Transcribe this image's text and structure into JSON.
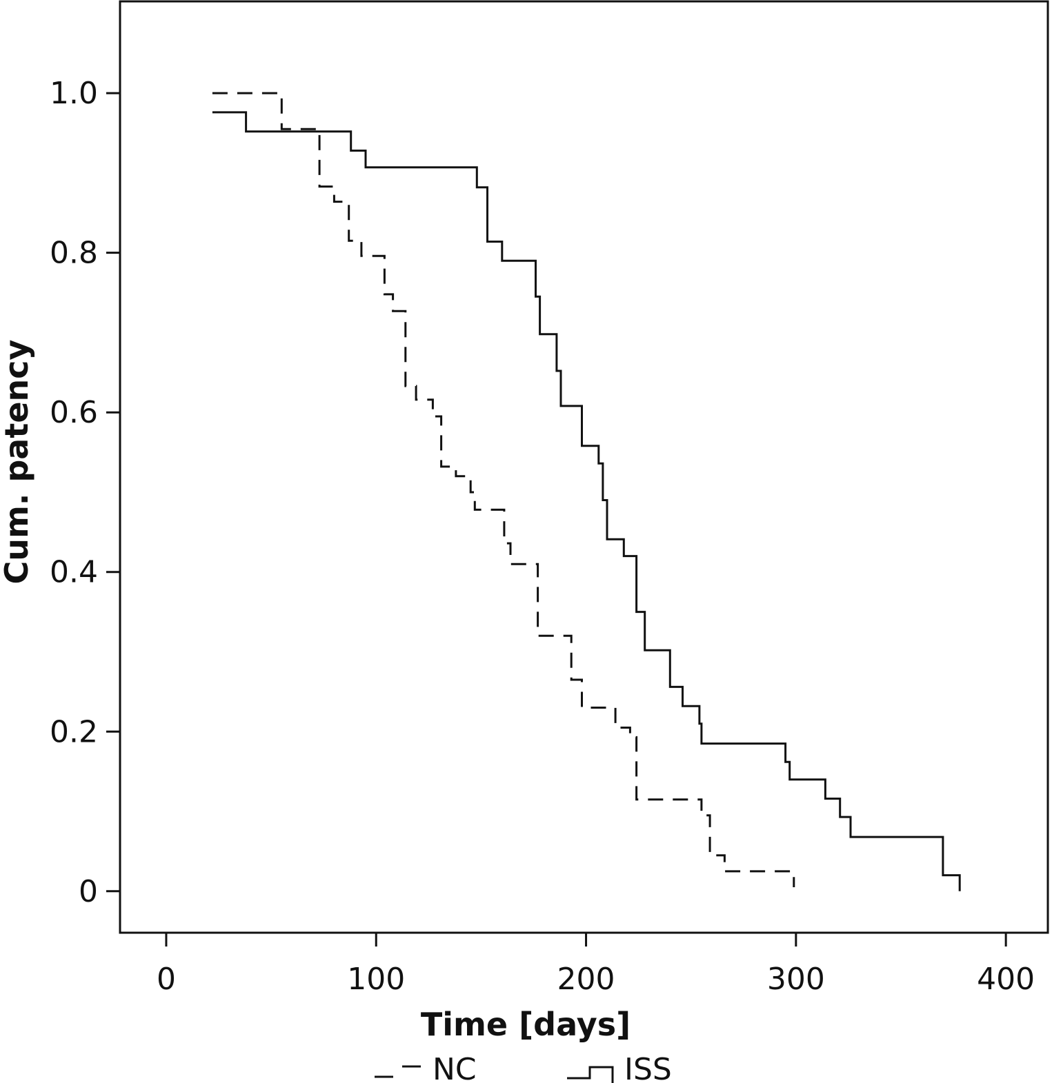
{
  "chart_data": {
    "type": "line",
    "step": true,
    "xlabel": "Time [days]",
    "ylabel": "Cum. patency",
    "xlim": [
      -22,
      420
    ],
    "ylim": [
      -0.052,
      1.115
    ],
    "x_ticks": [
      0,
      100,
      200,
      300,
      400
    ],
    "x_tick_labels": [
      "0",
      "100",
      "200",
      "300",
      "400"
    ],
    "y_ticks": [
      0,
      0.2,
      0.4,
      0.6,
      0.8,
      1.0
    ],
    "y_tick_labels": [
      "0",
      "0.2",
      "0.4",
      "0.6",
      "0.8",
      "1.0"
    ],
    "grid": false,
    "legend_position": "bottom",
    "series": [
      {
        "name": "NC",
        "style": "dashed",
        "color": "#111111",
        "points": [
          [
            22,
            1.0
          ],
          [
            55,
            1.0
          ],
          [
            55,
            0.955
          ],
          [
            73,
            0.955
          ],
          [
            73,
            0.883
          ],
          [
            80,
            0.883
          ],
          [
            80,
            0.864
          ],
          [
            87,
            0.864
          ],
          [
            87,
            0.815
          ],
          [
            93,
            0.815
          ],
          [
            93,
            0.796
          ],
          [
            104,
            0.796
          ],
          [
            104,
            0.748
          ],
          [
            108,
            0.748
          ],
          [
            108,
            0.727
          ],
          [
            114,
            0.727
          ],
          [
            114,
            0.633
          ],
          [
            119,
            0.633
          ],
          [
            119,
            0.616
          ],
          [
            127,
            0.616
          ],
          [
            127,
            0.595
          ],
          [
            131,
            0.595
          ],
          [
            131,
            0.532
          ],
          [
            138,
            0.532
          ],
          [
            138,
            0.52
          ],
          [
            145,
            0.52
          ],
          [
            145,
            0.5
          ],
          [
            147,
            0.5
          ],
          [
            147,
            0.478
          ],
          [
            161,
            0.478
          ],
          [
            161,
            0.436
          ],
          [
            164,
            0.436
          ],
          [
            164,
            0.41
          ],
          [
            177,
            0.41
          ],
          [
            177,
            0.32
          ],
          [
            193,
            0.32
          ],
          [
            193,
            0.265
          ],
          [
            198,
            0.265
          ],
          [
            198,
            0.23
          ],
          [
            214,
            0.23
          ],
          [
            214,
            0.205
          ],
          [
            221,
            0.205
          ],
          [
            221,
            0.193
          ],
          [
            224,
            0.193
          ],
          [
            224,
            0.115
          ],
          [
            255,
            0.115
          ],
          [
            255,
            0.095
          ],
          [
            259,
            0.095
          ],
          [
            259,
            0.045
          ],
          [
            266,
            0.045
          ],
          [
            266,
            0.025
          ],
          [
            299,
            0.025
          ],
          [
            299,
            0.005
          ]
        ]
      },
      {
        "name": "ISS",
        "style": "solid",
        "color": "#111111",
        "points": [
          [
            22,
            0.976
          ],
          [
            38,
            0.976
          ],
          [
            38,
            0.952
          ],
          [
            88,
            0.952
          ],
          [
            88,
            0.928
          ],
          [
            95,
            0.928
          ],
          [
            95,
            0.907
          ],
          [
            148,
            0.907
          ],
          [
            148,
            0.882
          ],
          [
            153,
            0.882
          ],
          [
            153,
            0.814
          ],
          [
            160,
            0.814
          ],
          [
            160,
            0.79
          ],
          [
            176,
            0.79
          ],
          [
            176,
            0.745
          ],
          [
            178,
            0.745
          ],
          [
            178,
            0.698
          ],
          [
            186,
            0.698
          ],
          [
            186,
            0.652
          ],
          [
            188,
            0.652
          ],
          [
            188,
            0.608
          ],
          [
            198,
            0.608
          ],
          [
            198,
            0.558
          ],
          [
            206,
            0.558
          ],
          [
            206,
            0.536
          ],
          [
            208,
            0.536
          ],
          [
            208,
            0.49
          ],
          [
            210,
            0.49
          ],
          [
            210,
            0.441
          ],
          [
            218,
            0.441
          ],
          [
            218,
            0.42
          ],
          [
            224,
            0.42
          ],
          [
            224,
            0.35
          ],
          [
            228,
            0.35
          ],
          [
            228,
            0.302
          ],
          [
            240,
            0.302
          ],
          [
            240,
            0.256
          ],
          [
            246,
            0.256
          ],
          [
            246,
            0.232
          ],
          [
            254,
            0.232
          ],
          [
            254,
            0.21
          ],
          [
            255,
            0.21
          ],
          [
            255,
            0.185
          ],
          [
            295,
            0.185
          ],
          [
            295,
            0.162
          ],
          [
            297,
            0.162
          ],
          [
            297,
            0.14
          ],
          [
            314,
            0.14
          ],
          [
            314,
            0.116
          ],
          [
            321,
            0.116
          ],
          [
            321,
            0.093
          ],
          [
            326,
            0.093
          ],
          [
            326,
            0.068
          ],
          [
            370,
            0.068
          ],
          [
            370,
            0.02
          ],
          [
            378,
            0.02
          ],
          [
            378,
            0.0
          ]
        ]
      }
    ]
  }
}
